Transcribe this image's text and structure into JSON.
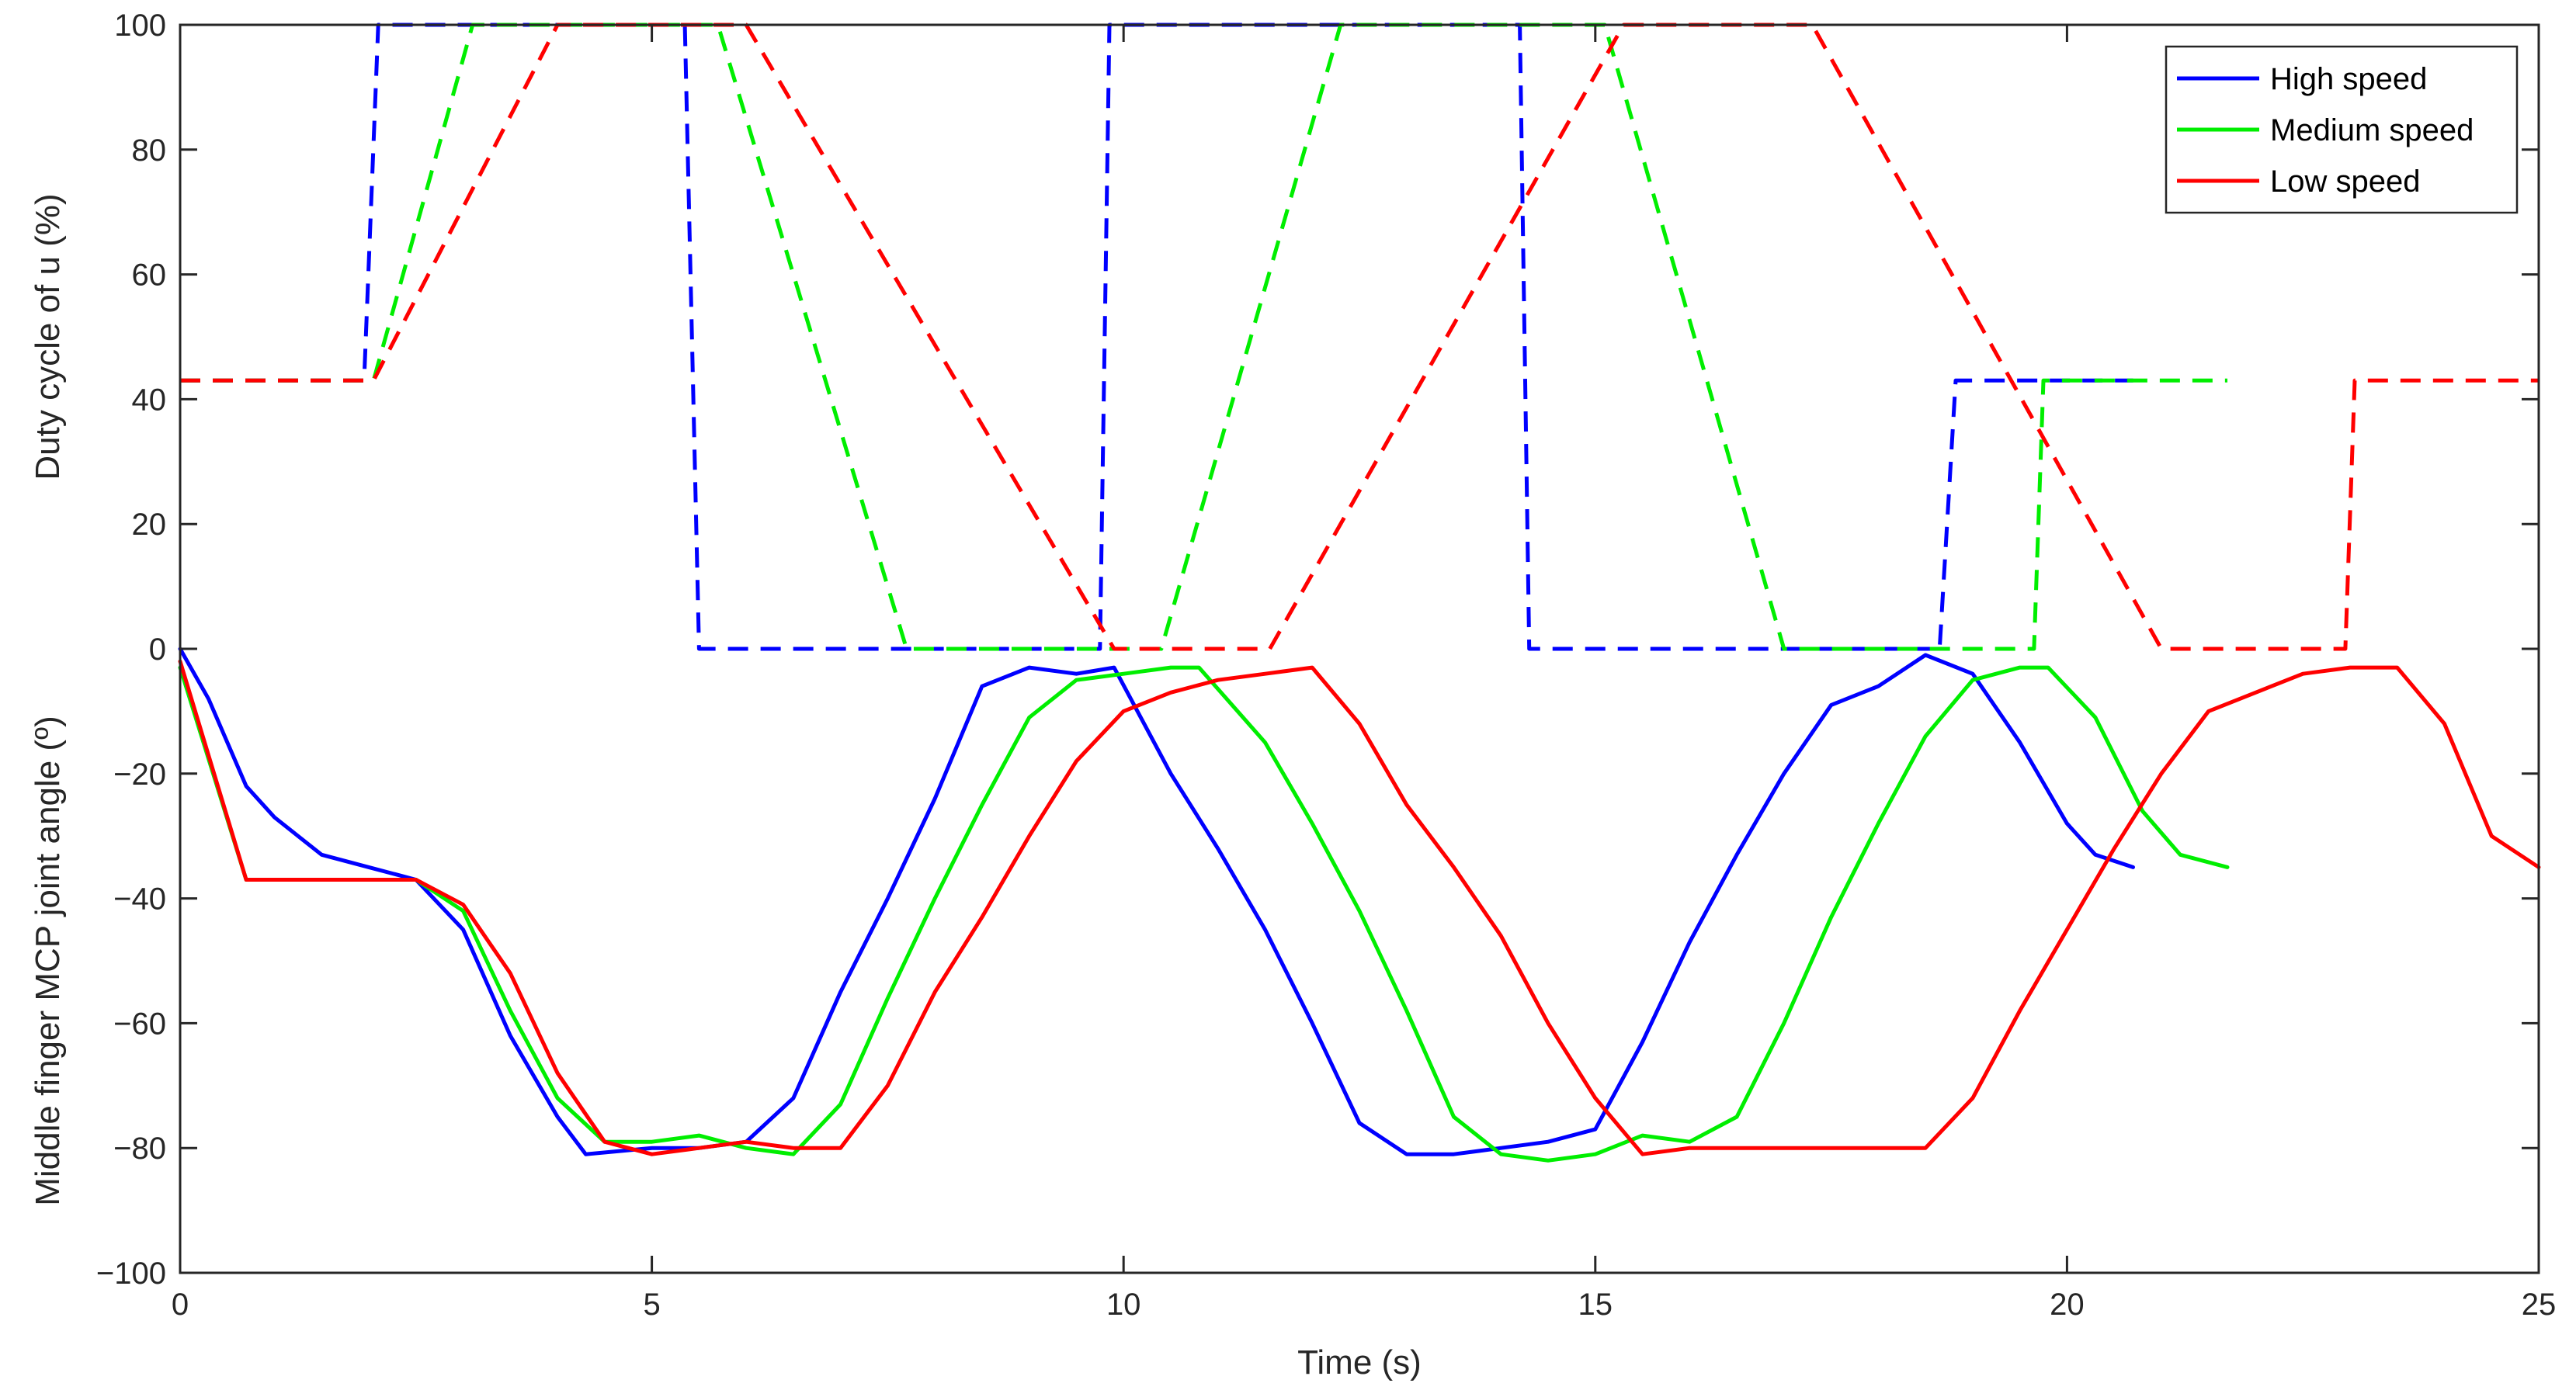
{
  "chart_data": {
    "type": "line",
    "xlabel": "Time (s)",
    "ylabel_upper": "Duty cycle of u (%)",
    "ylabel_lower": "Middle finger MCP joint angle (º)",
    "xlim": [
      0,
      25
    ],
    "ylim": [
      -100,
      100
    ],
    "xticks": [
      0,
      5,
      10,
      15,
      20,
      25
    ],
    "yticks": [
      -100,
      -80,
      -60,
      -40,
      -20,
      0,
      20,
      40,
      60,
      80,
      100
    ],
    "grid": false,
    "legend_position": "top-right",
    "legend": [
      {
        "label": "High speed",
        "color": "#0000ff"
      },
      {
        "label": "Medium speed",
        "color": "#00ee00"
      },
      {
        "label": "Low speed",
        "color": "#ff0000"
      }
    ],
    "series": [
      {
        "name": "High speed",
        "kind": "duty cycle (dashed)",
        "color": "#0000ff",
        "x": [
          0,
          1.95,
          2.1,
          5.35,
          5.5,
          9.75,
          9.85,
          14.2,
          14.3,
          18.65,
          18.82,
          20.7
        ],
        "y": [
          43,
          43,
          100,
          100,
          0,
          0,
          100,
          100,
          0,
          0,
          43,
          43
        ]
      },
      {
        "name": "Medium speed",
        "kind": "duty cycle (dashed)",
        "color": "#00ee00",
        "x": [
          0,
          2.05,
          3.1,
          5.7,
          7.7,
          10.4,
          12.3,
          15.1,
          17.0,
          19.65,
          19.75,
          21.7
        ],
        "y": [
          43,
          43,
          100,
          100,
          0,
          0,
          100,
          100,
          0,
          0,
          43,
          43
        ]
      },
      {
        "name": "Low speed",
        "kind": "duty cycle (dashed)",
        "color": "#ff0000",
        "x": [
          0,
          2.05,
          4.0,
          6.0,
          9.9,
          11.55,
          15.3,
          17.3,
          21.0,
          22.95,
          23.05,
          25.0
        ],
        "y": [
          43,
          43,
          100,
          100,
          0,
          0,
          100,
          100,
          0,
          0,
          43,
          43
        ]
      },
      {
        "name": "High speed",
        "kind": "joint angle (solid)",
        "color": "#0000ff",
        "x": [
          0,
          0.3,
          0.7,
          1.0,
          1.5,
          2.0,
          2.5,
          3.0,
          3.5,
          4.0,
          4.3,
          5.0,
          5.5,
          6.0,
          6.5,
          7.0,
          7.5,
          8.0,
          8.5,
          9.0,
          9.5,
          9.9,
          10.5,
          11.0,
          11.5,
          12.0,
          12.5,
          13.0,
          13.5,
          14.0,
          14.5,
          15.0,
          15.5,
          16.0,
          16.5,
          17.0,
          17.5,
          18.0,
          18.5,
          19.0,
          19.5,
          20.0,
          20.3,
          20.7
        ],
        "y": [
          0,
          -8,
          -22,
          -27,
          -33,
          -35,
          -37,
          -45,
          -62,
          -75,
          -81,
          -80,
          -80,
          -79,
          -72,
          -55,
          -40,
          -24,
          -6,
          -3,
          -4,
          -3,
          -20,
          -32,
          -45,
          -60,
          -76,
          -81,
          -81,
          -80,
          -79,
          -77,
          -63,
          -47,
          -33,
          -20,
          -9,
          -6,
          -1,
          -4,
          -15,
          -28,
          -33,
          -35
        ]
      },
      {
        "name": "Medium speed",
        "kind": "joint angle (solid)",
        "color": "#00ee00",
        "x": [
          0,
          0.7,
          1.5,
          2.5,
          3.0,
          3.5,
          4.0,
          4.5,
          5.0,
          5.5,
          6.0,
          6.5,
          7.0,
          7.5,
          8.0,
          8.5,
          9.0,
          9.5,
          10.0,
          10.5,
          10.8,
          11.5,
          12.0,
          12.5,
          13.0,
          13.5,
          14.0,
          14.5,
          15.0,
          15.5,
          16.0,
          16.5,
          17.0,
          17.5,
          18.0,
          18.5,
          19.0,
          19.5,
          19.8,
          20.3,
          20.8,
          21.2,
          21.7
        ],
        "y": [
          -3,
          -37,
          -37,
          -37,
          -42,
          -58,
          -72,
          -79,
          -79,
          -78,
          -80,
          -81,
          -73,
          -56,
          -40,
          -25,
          -11,
          -5,
          -4,
          -3,
          -3,
          -15,
          -28,
          -42,
          -58,
          -75,
          -81,
          -82,
          -81,
          -78,
          -79,
          -75,
          -60,
          -43,
          -28,
          -14,
          -5,
          -3,
          -3,
          -11,
          -26,
          -33,
          -35
        ]
      },
      {
        "name": "Low speed",
        "kind": "joint angle (solid)",
        "color": "#ff0000",
        "x": [
          0,
          0.7,
          1.5,
          2.5,
          3.0,
          3.5,
          4.0,
          4.5,
          5.0,
          5.5,
          6.0,
          6.5,
          7.0,
          7.5,
          8.0,
          8.5,
          9.0,
          9.5,
          10.0,
          10.5,
          11.0,
          11.5,
          12.0,
          12.5,
          13.0,
          13.5,
          14.0,
          14.5,
          15.0,
          15.5,
          16.0,
          16.5,
          17.0,
          17.5,
          18.0,
          18.5,
          19.0,
          19.5,
          20.0,
          20.5,
          21.0,
          21.5,
          22.0,
          22.5,
          23.0,
          23.5,
          24.0,
          24.5,
          25.0
        ],
        "y": [
          -2,
          -37,
          -37,
          -37,
          -41,
          -52,
          -68,
          -79,
          -81,
          -80,
          -79,
          -80,
          -80,
          -70,
          -55,
          -43,
          -30,
          -18,
          -10,
          -7,
          -5,
          -4,
          -3,
          -12,
          -25,
          -35,
          -46,
          -60,
          -72,
          -81,
          -80,
          -80,
          -80,
          -80,
          -80,
          -80,
          -72,
          -58,
          -45,
          -32,
          -20,
          -10,
          -7,
          -4,
          -3,
          -3,
          -12,
          -30,
          -35
        ]
      }
    ]
  }
}
